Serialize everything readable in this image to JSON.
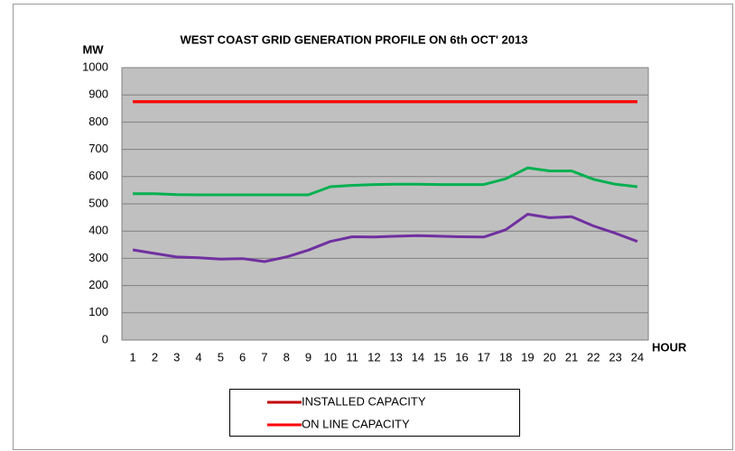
{
  "chart_data": {
    "type": "line",
    "title": "WEST COAST GRID GENERATION PROFILE ON 6th OCT' 2013",
    "y_label": "MW",
    "x_label": "HOUR",
    "categories": [
      "1",
      "2",
      "3",
      "4",
      "5",
      "6",
      "7",
      "8",
      "9",
      "10",
      "11",
      "12",
      "13",
      "14",
      "15",
      "16",
      "17",
      "18",
      "19",
      "20",
      "21",
      "22",
      "23",
      "24"
    ],
    "series": [
      {
        "name": "INSTALLED CAPACITY",
        "color": "#c00000",
        "values": [
          875,
          875,
          875,
          875,
          875,
          875,
          875,
          875,
          875,
          875,
          875,
          875,
          875,
          875,
          875,
          875,
          875,
          875,
          875,
          875,
          875,
          875,
          875,
          875
        ]
      },
      {
        "name": "ON LINE CAPACITY",
        "color": "#ff0000",
        "values": [
          875,
          875,
          875,
          875,
          875,
          875,
          875,
          875,
          875,
          875,
          875,
          875,
          875,
          875,
          875,
          875,
          875,
          875,
          875,
          875,
          875,
          875,
          875,
          875
        ]
      },
      {
        "color": "#00b050",
        "values": [
          537,
          537,
          534,
          533,
          533,
          533,
          533,
          533,
          533,
          563,
          568,
          571,
          572,
          572,
          571,
          571,
          571,
          592,
          632,
          621,
          621,
          590,
          572,
          563
        ]
      },
      {
        "color": "#7030a0",
        "values": [
          331,
          318,
          305,
          302,
          297,
          299,
          288,
          305,
          330,
          362,
          379,
          378,
          381,
          383,
          381,
          379,
          378,
          405,
          462,
          449,
          453,
          419,
          392,
          362
        ]
      }
    ],
    "ylim": [
      0,
      1000
    ],
    "yticks": [
      0,
      100,
      200,
      300,
      400,
      500,
      600,
      700,
      800,
      900,
      1000
    ],
    "grid": true,
    "legend": "bottom"
  }
}
